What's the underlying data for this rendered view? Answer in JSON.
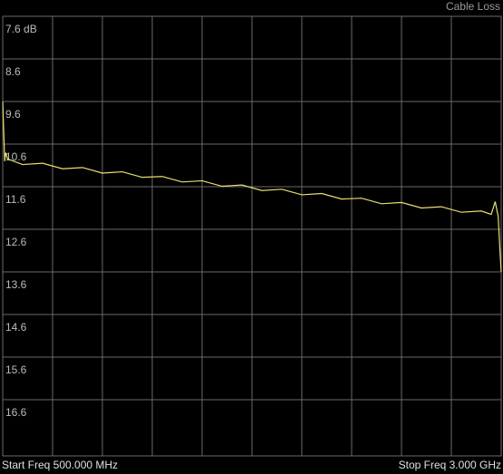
{
  "chart_data": {
    "type": "line",
    "title": "Cable Loss",
    "start_label": "Start Freq 500.000 MHz",
    "stop_label": "Stop Freq 3.000 GHz",
    "x": [
      500,
      505,
      510,
      515,
      525,
      600,
      700,
      800,
      900,
      1000,
      1100,
      1200,
      1300,
      1400,
      1500,
      1600,
      1700,
      1800,
      1900,
      2000,
      2100,
      2200,
      2300,
      2400,
      2500,
      2600,
      2700,
      2800,
      2900,
      2950,
      2970,
      2985,
      2995,
      3000
    ],
    "series": [
      {
        "color": "#e8e070",
        "values": [
          9.6,
          10.3,
          11.0,
          10.8,
          10.95,
          11.08,
          11.05,
          11.18,
          11.15,
          11.28,
          11.25,
          11.38,
          11.36,
          11.49,
          11.46,
          11.59,
          11.56,
          11.69,
          11.66,
          11.79,
          11.76,
          11.89,
          11.87,
          12.0,
          11.97,
          12.1,
          12.07,
          12.2,
          12.17,
          12.25,
          11.95,
          12.3,
          13.2,
          13.6
        ]
      }
    ],
    "xlim": [
      500,
      3000
    ],
    "ylim": [
      7.6,
      17.6
    ],
    "yticks": [
      {
        "value": 7.6,
        "label": "7.6 dB"
      },
      8.6,
      9.6,
      10.6,
      11.6,
      12.6,
      13.6,
      14.6,
      15.6,
      16.6
    ],
    "grid": true
  }
}
